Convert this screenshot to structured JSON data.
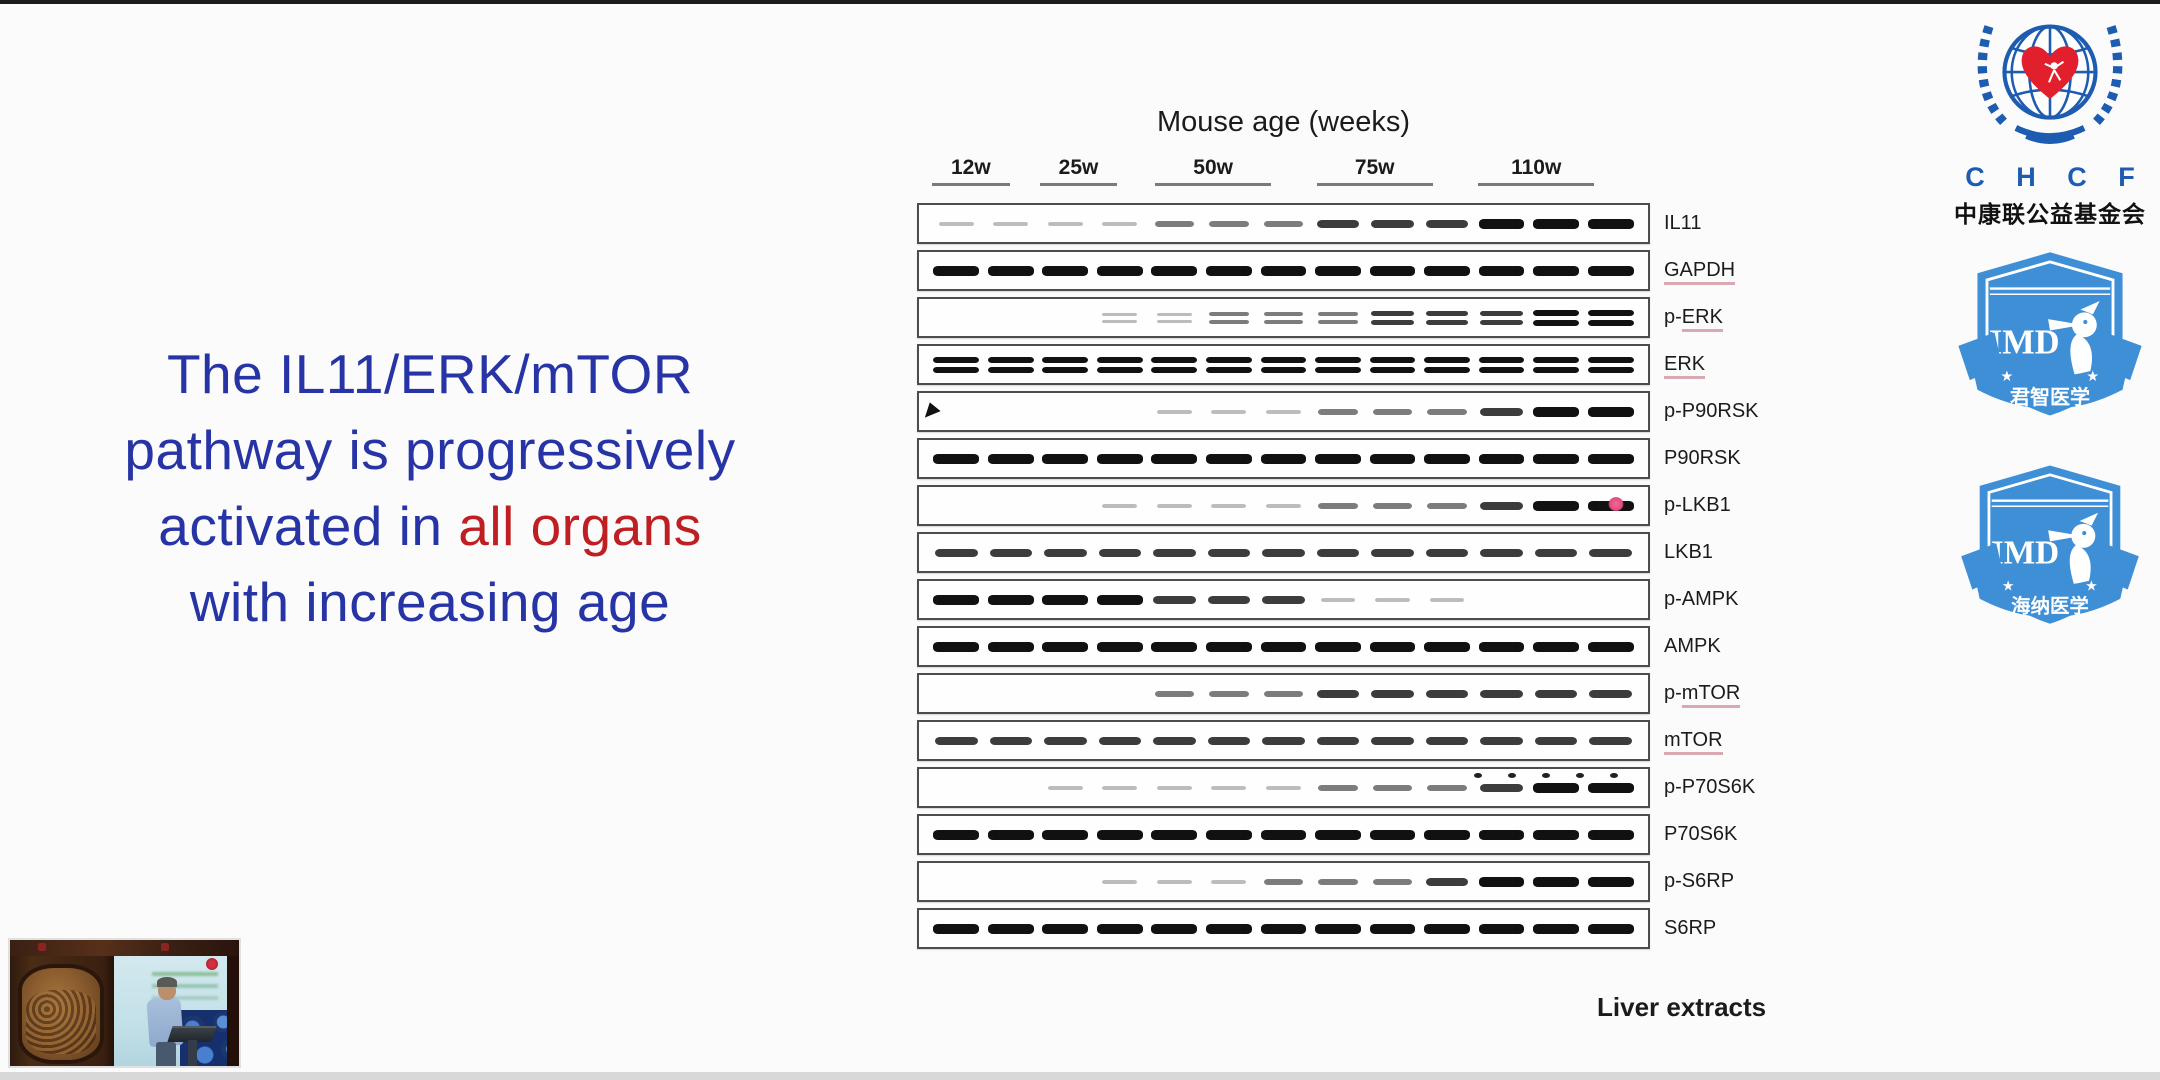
{
  "colors": {
    "headline_blue": "#2634a6",
    "headline_red": "#bf1f23",
    "chcf_blue": "#1d5cb0",
    "heart_red": "#e11f2d",
    "imd_blue": "#3e8fd6",
    "label_underline": "#d9a8b0"
  },
  "headline": {
    "lines": [
      [
        {
          "text": "The IL11/ERK/mTOR",
          "color": "blue"
        }
      ],
      [
        {
          "text": "pathway is progressively",
          "color": "blue"
        }
      ],
      [
        {
          "text": "activated in ",
          "color": "blue"
        },
        {
          "text": "all organs",
          "color": "red"
        }
      ],
      [
        {
          "text": "with increasing age",
          "color": "blue"
        }
      ]
    ]
  },
  "figure": {
    "title": "Mouse age (weeks)",
    "age_groups": [
      {
        "label": "12w",
        "lanes": 2
      },
      {
        "label": "25w",
        "lanes": 2
      },
      {
        "label": "50w",
        "lanes": 3
      },
      {
        "label": "75w",
        "lanes": 3
      },
      {
        "label": "110w",
        "lanes": 3
      }
    ],
    "lane_count": 13,
    "rows": [
      {
        "label": "IL11",
        "label_plain": "IL11",
        "label_underlined": "",
        "double_band": false,
        "artifact": null,
        "bands": [
          1,
          1,
          1,
          1,
          2,
          2,
          2,
          3,
          3,
          3,
          4,
          4,
          4
        ]
      },
      {
        "label": "GAPDH",
        "label_plain": "",
        "label_underlined": "GAPDH",
        "double_band": false,
        "artifact": null,
        "bands": [
          4,
          4,
          4,
          4,
          4,
          4,
          4,
          4,
          4,
          4,
          4,
          4,
          4
        ]
      },
      {
        "label": "p-ERK",
        "label_plain": "p-",
        "label_underlined": "ERK",
        "double_band": true,
        "artifact": null,
        "bands": [
          0,
          0,
          0,
          1,
          1,
          2,
          2,
          2,
          3,
          3,
          3,
          4,
          4
        ]
      },
      {
        "label": "ERK",
        "label_plain": "",
        "label_underlined": "ERK",
        "double_band": true,
        "artifact": null,
        "bands": [
          4,
          4,
          4,
          4,
          4,
          4,
          4,
          4,
          4,
          4,
          4,
          4,
          4
        ]
      },
      {
        "label": "p-P90RSK",
        "label_plain": "p-P90RSK",
        "label_underlined": "",
        "double_band": false,
        "artifact": "cursor",
        "bands": [
          0,
          0,
          0,
          0,
          1,
          1,
          1,
          2,
          2,
          2,
          3,
          4,
          4
        ]
      },
      {
        "label": "P90RSK",
        "label_plain": "P90RSK",
        "label_underlined": "",
        "double_band": false,
        "artifact": null,
        "bands": [
          4,
          4,
          4,
          4,
          4,
          4,
          4,
          4,
          4,
          4,
          4,
          4,
          4
        ]
      },
      {
        "label": "p-LKB1",
        "label_plain": "p-LKB1",
        "label_underlined": "",
        "double_band": false,
        "artifact": "red-dot",
        "bands": [
          0,
          0,
          0,
          1,
          1,
          1,
          1,
          2,
          2,
          2,
          3,
          4,
          4
        ]
      },
      {
        "label": "LKB1",
        "label_plain": "LKB1",
        "label_underlined": "",
        "double_band": false,
        "artifact": null,
        "bands": [
          3,
          3,
          3,
          3,
          3,
          3,
          3,
          3,
          3,
          3,
          3,
          3,
          3
        ]
      },
      {
        "label": "p-AMPK",
        "label_plain": "p-AMPK",
        "label_underlined": "",
        "double_band": false,
        "artifact": null,
        "bands": [
          4,
          4,
          4,
          4,
          3,
          3,
          3,
          1,
          1,
          1,
          0,
          0,
          0
        ]
      },
      {
        "label": "AMPK",
        "label_plain": "AMPK",
        "label_underlined": "",
        "double_band": false,
        "artifact": null,
        "bands": [
          4,
          4,
          4,
          4,
          4,
          4,
          4,
          4,
          4,
          4,
          4,
          4,
          4
        ]
      },
      {
        "label": "p-mTOR",
        "label_plain": "p-",
        "label_underlined": "mTOR",
        "double_band": false,
        "artifact": null,
        "bands": [
          0,
          0,
          0,
          0,
          2,
          2,
          2,
          3,
          3,
          3,
          3,
          3,
          3
        ]
      },
      {
        "label": "mTOR",
        "label_plain": "",
        "label_underlined": "mTOR",
        "double_band": false,
        "artifact": null,
        "bands": [
          3,
          3,
          3,
          3,
          3,
          3,
          3,
          3,
          3,
          3,
          3,
          3,
          3
        ]
      },
      {
        "label": "p-P70S6K",
        "label_plain": "p-P70S6K",
        "label_underlined": "",
        "double_band": false,
        "artifact": "top-dots",
        "bands": [
          0,
          0,
          1,
          1,
          1,
          1,
          1,
          2,
          2,
          2,
          3,
          4,
          4
        ]
      },
      {
        "label": "P70S6K",
        "label_plain": "P70S6K",
        "label_underlined": "",
        "double_band": false,
        "artifact": null,
        "bands": [
          4,
          4,
          4,
          4,
          4,
          4,
          4,
          4,
          4,
          4,
          4,
          4,
          4
        ]
      },
      {
        "label": "p-S6RP",
        "label_plain": "p-S6RP",
        "label_underlined": "",
        "double_band": false,
        "artifact": null,
        "bands": [
          0,
          0,
          0,
          1,
          1,
          1,
          2,
          2,
          2,
          3,
          4,
          4,
          4
        ]
      },
      {
        "label": "S6RP",
        "label_plain": "S6RP",
        "label_underlined": "",
        "double_band": false,
        "artifact": null,
        "bands": [
          4,
          4,
          4,
          4,
          4,
          4,
          4,
          4,
          4,
          4,
          4,
          4,
          4
        ]
      }
    ],
    "caption": "Liver extracts"
  },
  "logos": {
    "chcf": {
      "acronym": "C H C F",
      "chinese": "中康联公益基金会"
    },
    "imd_badges": [
      {
        "shield_text": "IMD",
        "banner_text": "君智医学"
      },
      {
        "shield_text": "IMD",
        "banner_text": "海纳医学"
      }
    ]
  }
}
